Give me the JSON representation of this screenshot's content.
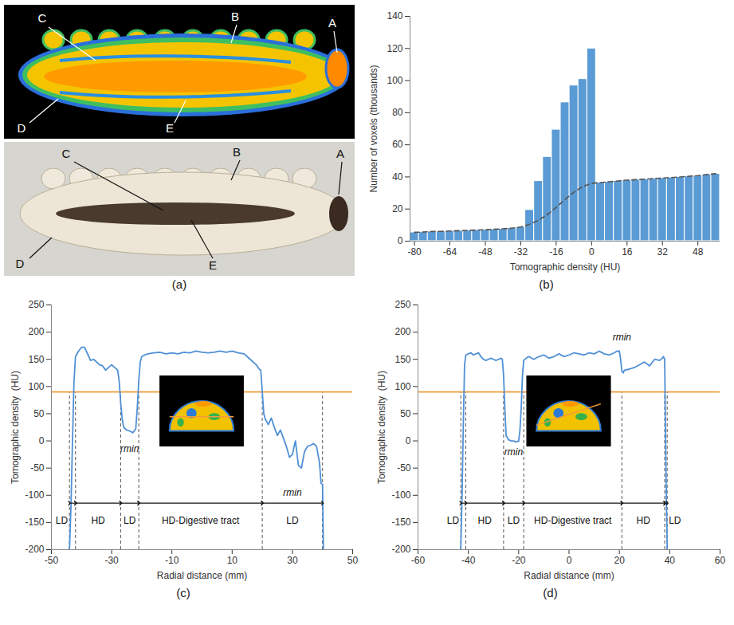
{
  "chart_data": [
    {
      "type": "image",
      "panel_label": "(a)",
      "images": [
        {
          "labels": [
            "C",
            "B",
            "A",
            "D",
            "E"
          ]
        },
        {
          "labels": [
            "C",
            "B",
            "A",
            "D",
            "E"
          ]
        }
      ]
    },
    {
      "type": "histogram",
      "panel_label": "(b)",
      "x_label": "Tomographic density (HU)",
      "y_label": "Number of voxels (thousands)",
      "bins": [
        -82,
        -78,
        -74,
        -70,
        -66,
        -62,
        -58,
        -54,
        -50,
        -46,
        -42,
        -38,
        -34,
        -30,
        -26,
        -22,
        -18,
        -14,
        -10,
        -6,
        -2,
        2,
        6,
        10,
        14,
        18,
        22,
        26,
        30,
        34,
        38,
        42,
        46,
        50,
        54,
        58
      ],
      "values": [
        5.5,
        5.7,
        6,
        6.1,
        6.3,
        6.5,
        6.7,
        6.9,
        7.1,
        7.4,
        7.7,
        8.1,
        8.8,
        19.5,
        37.5,
        52.5,
        69.5,
        86.5,
        97,
        101,
        120,
        36.5,
        37,
        37.5,
        38,
        38.3,
        38.6,
        39,
        39.3,
        39.6,
        40,
        40.4,
        40.8,
        41.5,
        42
      ],
      "color": "#5b9bd5",
      "series": [
        {
          "values": [
            5.5,
            5.7,
            6,
            6.1,
            6.3,
            6.5,
            6.7,
            6.9,
            7.1,
            7.4,
            7.7,
            8.1,
            8.8,
            10.5,
            13,
            16.5,
            21,
            26,
            30.5,
            34,
            36,
            36.5,
            37,
            37.5,
            38,
            38.3,
            38.6,
            39,
            39.3,
            39.6,
            40,
            40.4,
            40.8,
            41.5,
            42
          ],
          "color": "#555555",
          "line_style": "dashed"
        }
      ],
      "xlim": [
        -82,
        58
      ],
      "xticks": [
        -80,
        -64,
        -48,
        -32,
        -16,
        0,
        16,
        32,
        48
      ],
      "ylim": [
        0,
        140
      ],
      "yticks": [
        0,
        20,
        40,
        60,
        80,
        100,
        120,
        140
      ]
    },
    {
      "type": "line",
      "panel_label": "(c)",
      "x_label": "Radial distance (mm)",
      "y_label": "Tomographic density  (HU)",
      "x": [
        -44,
        -43.5,
        -43,
        -42.5,
        -42,
        -41,
        -40,
        -39,
        -38,
        -37,
        -36,
        -35,
        -34,
        -33,
        -32,
        -31,
        -30,
        -29,
        -28,
        -27.5,
        -27,
        -26.5,
        -26,
        -25,
        -24,
        -23,
        -22,
        -21.5,
        -21,
        -20.5,
        -20,
        -19,
        -18,
        -16,
        -14,
        -12,
        -10,
        -8,
        -6,
        -4,
        -2,
        0,
        2,
        4,
        6,
        8,
        10,
        12,
        14,
        16,
        18,
        19,
        19.5,
        20,
        20.5,
        21,
        22,
        23,
        24,
        25,
        26,
        27,
        28,
        29,
        30,
        31,
        32,
        33,
        34,
        35,
        36,
        37,
        38,
        39,
        39.5,
        40,
        40.3
      ],
      "series": [
        {
          "values": [
            -200,
            -120,
            0,
            110,
            155,
            165,
            172,
            172,
            160,
            148,
            150,
            145,
            140,
            138,
            130,
            135,
            140,
            135,
            130,
            110,
            70,
            40,
            25,
            20,
            18,
            15,
            22,
            60,
            110,
            145,
            155,
            158,
            160,
            162,
            163,
            160,
            162,
            160,
            163,
            162,
            165,
            163,
            162,
            163,
            165,
            163,
            165,
            162,
            160,
            150,
            140,
            132,
            130,
            90,
            50,
            40,
            30,
            42,
            25,
            10,
            20,
            5,
            -10,
            -30,
            -25,
            0,
            -45,
            -50,
            -20,
            -10,
            -8,
            -5,
            -10,
            -40,
            -78,
            -80,
            -200
          ],
          "color": "#4f90d6"
        }
      ],
      "reference_line": {
        "value": 90,
        "color": "#f39c3c"
      },
      "regions": [
        {
          "label": "LD",
          "from": -44,
          "to": -42
        },
        {
          "label": "HD",
          "from": -42,
          "to": -27
        },
        {
          "label": "LD",
          "from": -27,
          "to": -21
        },
        {
          "label": "HD-Digestive tract",
          "from": -21,
          "to": 20
        },
        {
          "label": "LD",
          "from": 20,
          "to": 40
        }
      ],
      "annotations": [
        {
          "text": "rmin",
          "x": -24,
          "y": -15
        },
        {
          "text": "rmin",
          "x": 30,
          "y": -95
        }
      ],
      "xlim": [
        -50,
        50
      ],
      "xticks": [
        -50,
        -30,
        -10,
        10,
        30,
        50
      ],
      "ylim": [
        -200,
        250
      ],
      "yticks": [
        -200,
        -150,
        -100,
        -50,
        0,
        50,
        100,
        150,
        200,
        250
      ]
    },
    {
      "type": "line",
      "panel_label": "(d)",
      "x_label": "Radial distance (mm)",
      "y_label": "Tomographic density  (HU)",
      "x": [
        -43,
        -42.5,
        -42,
        -41.5,
        -41,
        -40,
        -39,
        -38,
        -37,
        -36,
        -35,
        -34,
        -33,
        -32,
        -31,
        -30,
        -29,
        -28,
        -27,
        -26.5,
        -26,
        -25.5,
        -25,
        -24,
        -23,
        -22,
        -21,
        -20,
        -19.5,
        -19,
        -18.5,
        -18,
        -17,
        -16,
        -14,
        -12,
        -10,
        -8,
        -6,
        -4,
        -2,
        0,
        2,
        4,
        6,
        8,
        10,
        12,
        14,
        16,
        18,
        19,
        20,
        20.5,
        21,
        21.5,
        22,
        24,
        26,
        28,
        30,
        32,
        34,
        36,
        37,
        37.5,
        38,
        38.5,
        39
      ],
      "series": [
        {
          "values": [
            -200,
            -100,
            30,
            140,
            158,
            160,
            162,
            158,
            160,
            162,
            155,
            150,
            148,
            150,
            152,
            150,
            148,
            150,
            152,
            150,
            120,
            60,
            10,
            2,
            0,
            0,
            -2,
            0,
            20,
            60,
            120,
            148,
            152,
            155,
            150,
            155,
            158,
            152,
            155,
            160,
            155,
            158,
            162,
            160,
            158,
            162,
            160,
            165,
            160,
            158,
            162,
            165,
            165,
            150,
            128,
            125,
            130,
            132,
            135,
            140,
            145,
            138,
            150,
            148,
            152,
            155,
            150,
            -50,
            -200
          ],
          "color": "#4f90d6"
        }
      ],
      "reference_line": {
        "value": 90,
        "color": "#f39c3c"
      },
      "regions": [
        {
          "label": "LD",
          "from": -43,
          "to": -41
        },
        {
          "label": "HD",
          "from": -41,
          "to": -26
        },
        {
          "label": "LD",
          "from": -26,
          "to": -18
        },
        {
          "label": "HD-Digestive tract",
          "from": -18,
          "to": 21
        },
        {
          "label": "HD",
          "from": 21,
          "to": 38
        },
        {
          "label": "LD",
          "from": 38,
          "to": 39
        }
      ],
      "annotations": [
        {
          "text": "rmin",
          "x": -22,
          "y": -20
        },
        {
          "text": "rmin",
          "x": 21,
          "y": 190
        }
      ],
      "xlim": [
        -60,
        60
      ],
      "xticks": [
        -60,
        -40,
        -20,
        0,
        20,
        40,
        60
      ],
      "ylim": [
        -200,
        250
      ],
      "yticks": [
        -200,
        -150,
        -100,
        -50,
        0,
        50,
        100,
        150,
        200,
        250
      ]
    }
  ]
}
